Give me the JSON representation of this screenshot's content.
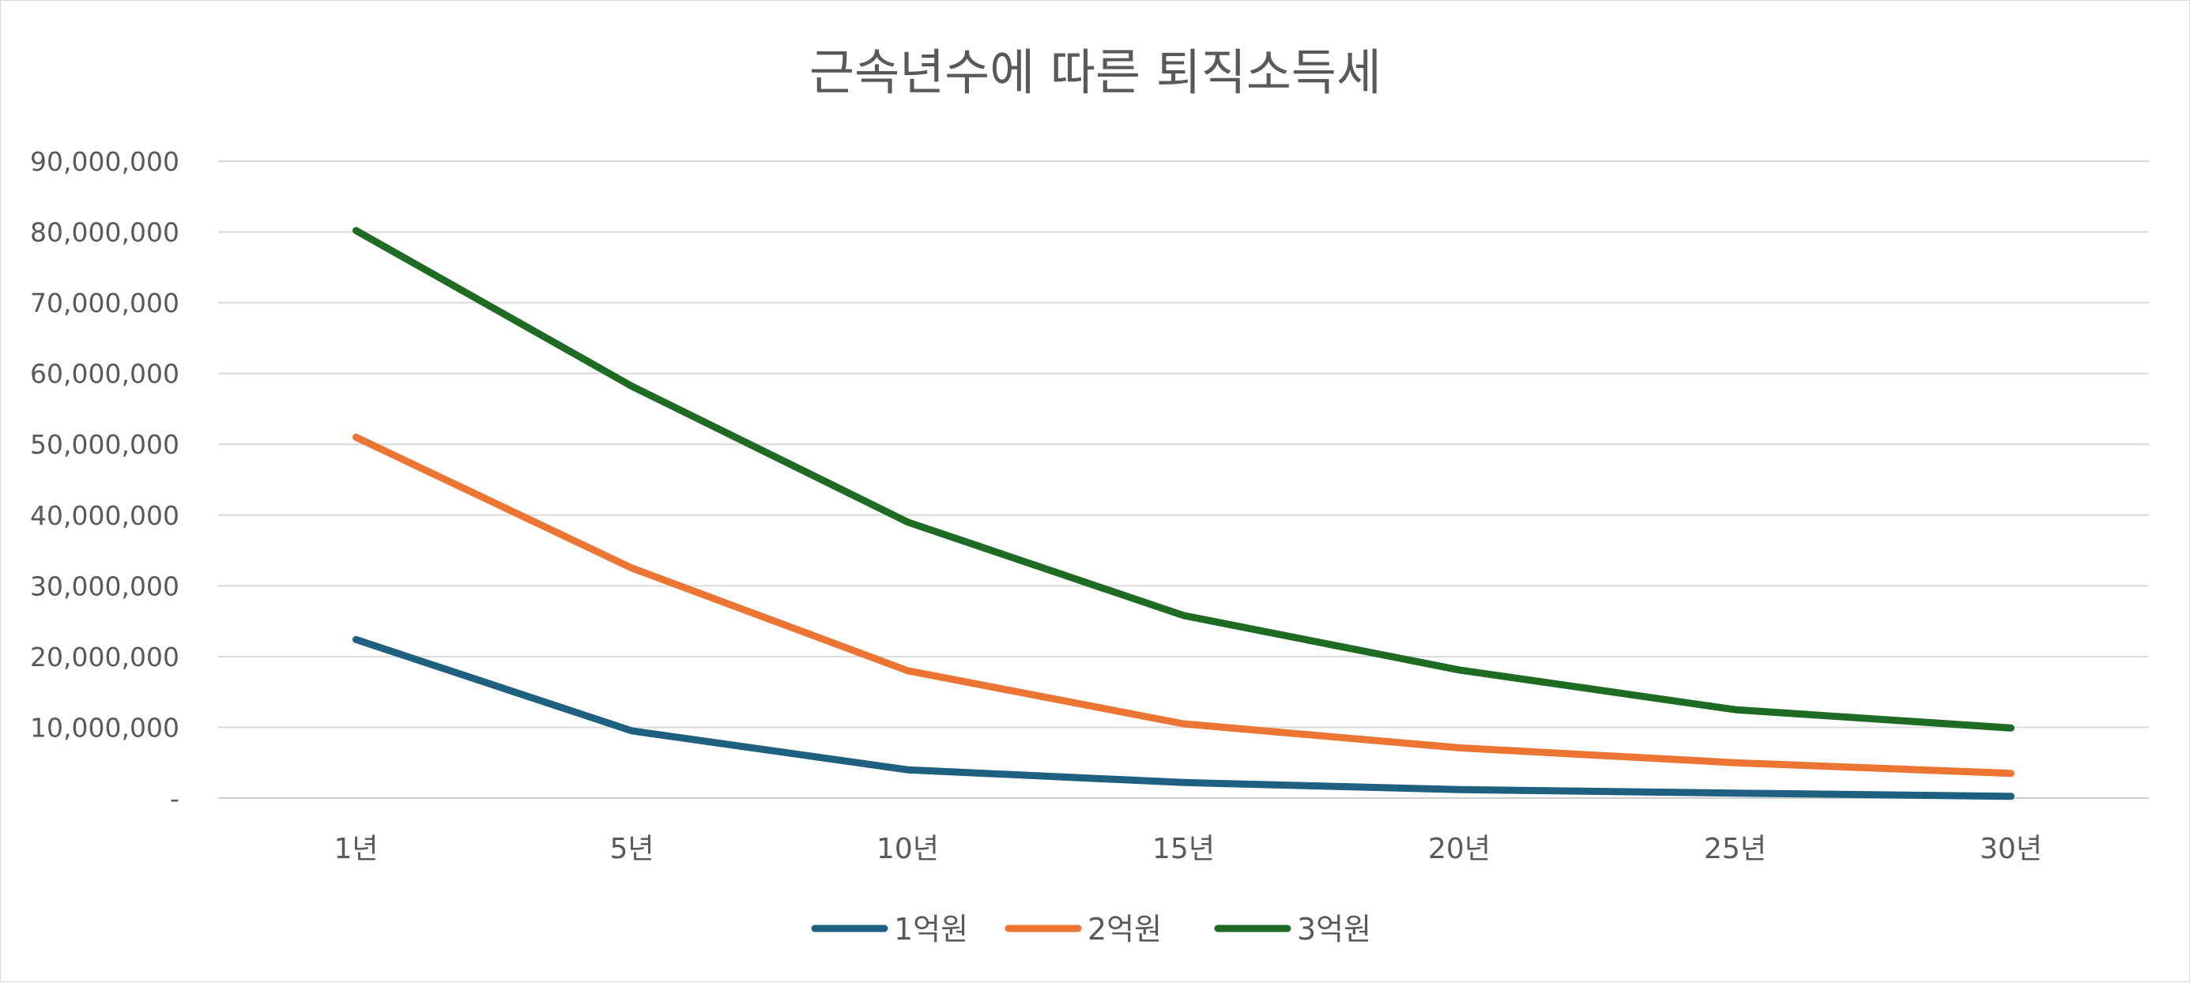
{
  "chart_data": {
    "type": "line",
    "title": "근속년수에 따른 퇴직소득세",
    "categories": [
      "1년",
      "5년",
      "10년",
      "15년",
      "20년",
      "25년",
      "30년"
    ],
    "ylim": [
      0,
      90000000
    ],
    "yticks": [
      0,
      10000000,
      20000000,
      30000000,
      40000000,
      50000000,
      60000000,
      70000000,
      80000000,
      90000000
    ],
    "ytick_labels": [
      "-",
      "10,000,000",
      "20,000,000",
      "30,000,000",
      "40,000,000",
      "50,000,000",
      "60,000,000",
      "70,000,000",
      "80,000,000",
      "90,000,000"
    ],
    "xlabel": "",
    "ylabel": "",
    "grid": true,
    "legend_position": "bottom",
    "series": [
      {
        "name": "1억원",
        "color": "#1f5f7f",
        "values": [
          22400000,
          9500000,
          4000000,
          2200000,
          1200000,
          700000,
          250000
        ]
      },
      {
        "name": "2억원",
        "color": "#ed7534",
        "values": [
          51000000,
          32500000,
          18000000,
          10500000,
          7100000,
          5000000,
          3500000
        ]
      },
      {
        "name": "3억원",
        "color": "#1e6b24",
        "values": [
          80200000,
          58200000,
          39000000,
          25800000,
          18100000,
          12500000,
          9900000
        ]
      }
    ]
  }
}
